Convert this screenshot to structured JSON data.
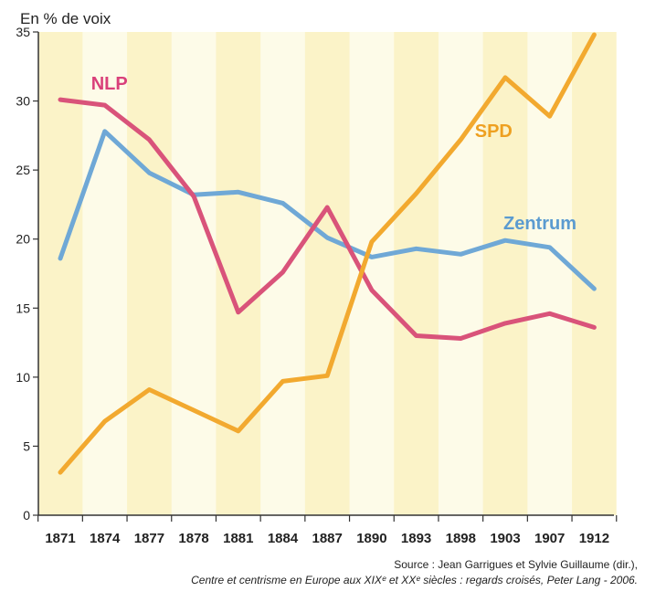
{
  "chart_data": {
    "type": "line",
    "ylabel": "En % de voix",
    "ylim": [
      0,
      35
    ],
    "yticks": [
      0,
      5,
      10,
      15,
      20,
      25,
      30,
      35
    ],
    "categories": [
      "1871",
      "1874",
      "1877",
      "1878",
      "1881",
      "1884",
      "1887",
      "1890",
      "1893",
      "1898",
      "1903",
      "1907",
      "1912"
    ],
    "grid": false,
    "series": [
      {
        "name": "NLP",
        "color": "#d9537a",
        "label_color": "#d9407a",
        "values": [
          30.1,
          29.7,
          27.2,
          23.1,
          14.7,
          17.6,
          22.3,
          16.3,
          13.0,
          12.8,
          13.9,
          14.6,
          13.6
        ]
      },
      {
        "name": "Zentrum",
        "color": "#6fa8d6",
        "label_color": "#5b9bd0",
        "values": [
          18.6,
          27.8,
          24.8,
          23.2,
          23.4,
          22.6,
          20.1,
          18.7,
          19.3,
          18.9,
          19.9,
          19.4,
          16.4
        ]
      },
      {
        "name": "SPD",
        "color": "#f2a92f",
        "label_color": "#eea020",
        "values": [
          3.1,
          6.8,
          9.1,
          7.6,
          6.1,
          9.7,
          10.1,
          19.8,
          23.3,
          27.2,
          31.7,
          28.9,
          34.8
        ]
      }
    ]
  },
  "source_line1": "Source : Jean Garrigues et Sylvie Guillaume (dir.),",
  "source_line2": "Centre et centrisme en Europe aux XIXᵉ et XXᵉ siècles : regards croisés, Peter Lang - 2006."
}
